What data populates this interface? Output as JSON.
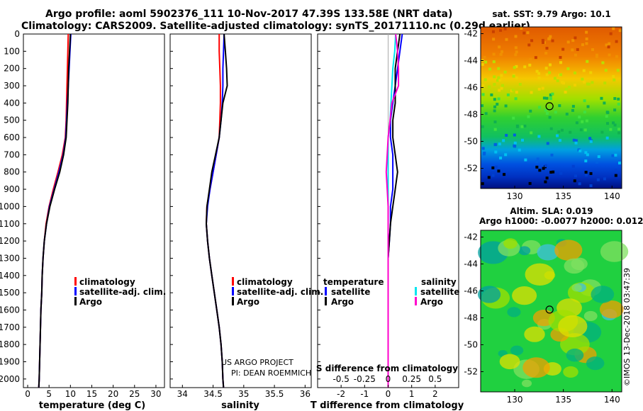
{
  "header": {
    "line1": "Argo profile: aoml 5902376_111 10-Nov-2017 47.39S 133.58E (NRT data)",
    "line2": "Climatology: CARS2009. Satellite-adjusted climatology: synTS_20171110.nc (0.29d earlier)"
  },
  "colors": {
    "climatology": "#ff0000",
    "satellite": "#0000ff",
    "argo": "#000000",
    "sal_sat": "#00e5ee",
    "sal_argo": "#ff00cc"
  },
  "depth_ticks": [
    "0",
    "100",
    "200",
    "300",
    "400",
    "500",
    "600",
    "700",
    "800",
    "900",
    "1000",
    "1100",
    "1200",
    "1300",
    "1400",
    "1500",
    "1600",
    "1700",
    "1800",
    "1900",
    "2000"
  ],
  "chart_data": [
    {
      "type": "line",
      "xlabel": "temperature (deg C)",
      "ylabel": "depth",
      "xlim": [
        -1,
        32
      ],
      "ylim": [
        2050,
        0
      ],
      "xticks": [
        "0",
        "5",
        "10",
        "15",
        "20",
        "25",
        "30"
      ],
      "legend": [
        "climatology",
        "satellite-adj. clim.",
        "Argo"
      ],
      "depth": [
        0,
        100,
        200,
        300,
        400,
        500,
        600,
        700,
        800,
        900,
        1000,
        1100,
        1200,
        1300,
        1400,
        1500,
        1600,
        1700,
        1800,
        1900,
        2000,
        2050
      ],
      "series": [
        {
          "name": "climatology",
          "values": [
            9.5,
            9.4,
            9.3,
            9.2,
            9.1,
            9.0,
            8.8,
            8.1,
            7.1,
            6.0,
            5.0,
            4.3,
            3.9,
            3.6,
            3.4,
            3.3,
            3.1,
            3.0,
            2.9,
            2.8,
            2.7,
            2.6
          ]
        },
        {
          "name": "satellite-adj. clim.",
          "values": [
            10.1,
            9.9,
            9.7,
            9.5,
            9.3,
            9.1,
            8.9,
            8.3,
            7.3,
            6.2,
            5.1,
            4.4,
            3.9,
            3.6,
            3.4,
            3.3,
            3.1,
            3.0,
            2.9,
            2.8,
            2.7,
            2.6
          ]
        },
        {
          "name": "Argo",
          "values": [
            10.0,
            9.8,
            9.6,
            9.5,
            9.4,
            9.2,
            9.0,
            8.4,
            7.5,
            6.3,
            5.2,
            4.4,
            3.9,
            3.6,
            3.4,
            3.3,
            3.1,
            3.0,
            2.9,
            2.8,
            2.7,
            2.6
          ]
        }
      ]
    },
    {
      "type": "line",
      "xlabel": "salinity",
      "ylabel": "depth",
      "xlim": [
        33.8,
        36.1
      ],
      "ylim": [
        2050,
        0
      ],
      "xticks": [
        "34",
        "34.5",
        "35",
        "35.5",
        "36"
      ],
      "legend": [
        "climatology",
        "satellite-adj. clim.",
        "Argo"
      ],
      "annotations": [
        "US ARGO PROJECT",
        "PI: DEAN ROEMMICH"
      ],
      "depth": [
        0,
        100,
        200,
        300,
        400,
        500,
        600,
        700,
        800,
        900,
        1000,
        1100,
        1200,
        1300,
        1400,
        1500,
        1600,
        1700,
        1800,
        1900,
        2000,
        2050
      ],
      "series": [
        {
          "name": "climatology",
          "values": [
            34.6,
            34.6,
            34.61,
            34.62,
            34.62,
            34.61,
            34.6,
            34.55,
            34.5,
            34.45,
            34.4,
            34.39,
            34.41,
            34.44,
            34.48,
            34.52,
            34.56,
            34.6,
            34.63,
            34.65,
            34.66,
            34.67
          ]
        },
        {
          "name": "satellite-adj. clim.",
          "values": [
            34.68,
            34.67,
            34.66,
            34.66,
            34.65,
            34.63,
            34.6,
            34.55,
            34.5,
            34.45,
            34.41,
            34.39,
            34.41,
            34.44,
            34.48,
            34.52,
            34.56,
            34.6,
            34.63,
            34.65,
            34.66,
            34.67
          ]
        },
        {
          "name": "Argo",
          "values": [
            34.68,
            34.7,
            34.72,
            34.73,
            34.66,
            34.63,
            34.6,
            34.54,
            34.48,
            34.44,
            34.4,
            34.39,
            34.41,
            34.44,
            34.48,
            34.52,
            34.56,
            34.6,
            34.63,
            34.65,
            34.66,
            34.67
          ]
        }
      ]
    },
    {
      "type": "line",
      "xlabel": "T difference from climatology",
      "x2label": "S difference from climatology",
      "ylabel": "depth",
      "xlim": [
        -3,
        3
      ],
      "ylim": [
        2050,
        0
      ],
      "xticks": [
        "-2",
        "-1",
        "0",
        "1",
        "2"
      ],
      "x2ticks": [
        "-0.5",
        "-0.25",
        "0",
        "0.25",
        "0.5"
      ],
      "legend_temperature_title": "temperature",
      "legend_salinity_title": "salinity",
      "legend_temperature": [
        "satellite",
        "Argo"
      ],
      "legend_salinity": [
        "satellite",
        "Argo"
      ],
      "depth": [
        0,
        100,
        200,
        300,
        400,
        500,
        600,
        700,
        800,
        900,
        1000,
        1100,
        1200,
        1300,
        1400,
        1500,
        1600,
        1700,
        1800,
        1900,
        2000,
        2050
      ],
      "series": [
        {
          "name": "T satellite",
          "values": [
            0.6,
            0.5,
            0.4,
            0.3,
            0.2,
            0.1,
            0.1,
            0.2,
            0.2,
            0.2,
            0.1,
            0.1,
            0.05,
            0,
            0,
            0,
            0,
            0,
            0,
            0,
            0,
            0
          ]
        },
        {
          "name": "T Argo",
          "values": [
            0.5,
            0.4,
            0.3,
            0.3,
            0.3,
            0.2,
            0.2,
            0.3,
            0.4,
            0.3,
            0.2,
            0.1,
            0.05,
            0,
            0,
            0,
            0,
            0,
            0,
            0,
            0,
            0
          ]
        },
        {
          "name": "S satellite",
          "values": [
            0.08,
            0.07,
            0.05,
            0.04,
            0.03,
            0.02,
            0,
            0,
            0,
            0,
            0,
            0,
            0,
            0,
            0,
            0,
            0,
            0,
            0,
            0,
            0,
            0
          ]
        },
        {
          "name": "S Argo",
          "values": [
            0.08,
            0.1,
            0.11,
            0.11,
            0.04,
            0.02,
            0,
            -0.01,
            -0.02,
            -0.01,
            0,
            0,
            0,
            0,
            0,
            0,
            0,
            0,
            0,
            0,
            0,
            0
          ]
        }
      ]
    },
    {
      "type": "heatmap",
      "title": "sat. SST: 9.79 Argo: 10.1",
      "xlim": [
        126.5,
        141
      ],
      "ylim": [
        -53.5,
        -41.5
      ],
      "xticks": [
        "130",
        "135",
        "140"
      ],
      "yticks": [
        "-42",
        "-44",
        "-46",
        "-48",
        "-50",
        "-52"
      ],
      "marker": {
        "lon": 133.58,
        "lat": -47.39
      }
    },
    {
      "type": "heatmap",
      "title": "Altim. SLA: 0.019",
      "subtitle": "Argo h1000: -0.0077 h2000: 0.012",
      "xlim": [
        126.5,
        141
      ],
      "ylim": [
        -53.5,
        -41.5
      ],
      "xticks": [
        "130",
        "135",
        "140"
      ],
      "yticks": [
        "-42",
        "-44",
        "-46",
        "-48",
        "-50",
        "-52"
      ],
      "marker": {
        "lon": 133.58,
        "lat": -47.39
      }
    }
  ],
  "credit": "©IMOS 13-Dec-2018 03:47:39"
}
